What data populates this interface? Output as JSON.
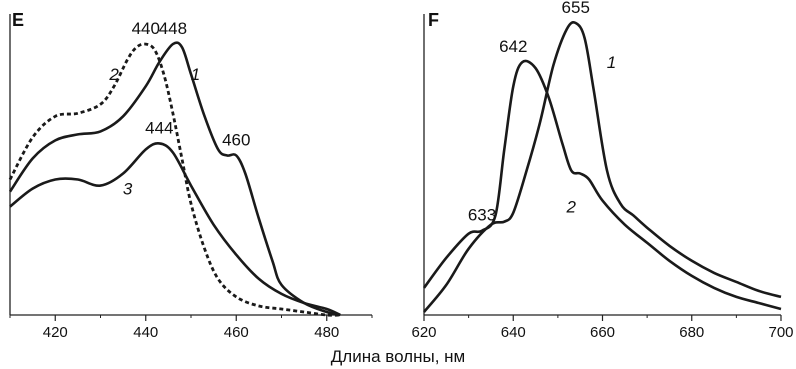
{
  "xlabel": "Длина волны, нм",
  "chart_data": [
    {
      "type": "line",
      "panel": "E",
      "xlim": [
        410,
        490
      ],
      "ylim": [
        0,
        1
      ],
      "xticks": [
        420,
        440,
        460,
        480
      ],
      "grid": false,
      "legend": "none",
      "series": [
        {
          "curve_label": "1",
          "style": "solid",
          "x": [
            410,
            415,
            420,
            425,
            430,
            435,
            440,
            443,
            446,
            448,
            450,
            453,
            456,
            458,
            460,
            462,
            465,
            468,
            470,
            475,
            480,
            483
          ],
          "y": [
            0.41,
            0.52,
            0.58,
            0.6,
            0.61,
            0.66,
            0.76,
            0.84,
            0.9,
            0.89,
            0.8,
            0.66,
            0.55,
            0.53,
            0.53,
            0.47,
            0.32,
            0.18,
            0.1,
            0.04,
            0.01,
            0.0
          ]
        },
        {
          "curve_label": "2",
          "style": "dashed",
          "x": [
            410,
            415,
            420,
            425,
            430,
            433,
            436,
            438,
            440,
            442,
            444,
            446,
            448,
            450,
            453,
            456,
            460,
            465,
            470,
            475,
            480,
            483
          ],
          "y": [
            0.45,
            0.59,
            0.66,
            0.67,
            0.7,
            0.76,
            0.85,
            0.89,
            0.9,
            0.88,
            0.8,
            0.67,
            0.52,
            0.37,
            0.22,
            0.12,
            0.06,
            0.03,
            0.02,
            0.01,
            0.0,
            0.0
          ]
        },
        {
          "curve_label": "3",
          "style": "solid",
          "x": [
            410,
            415,
            420,
            425,
            430,
            435,
            440,
            443,
            446,
            450,
            455,
            460,
            465,
            470,
            475,
            480,
            483
          ],
          "y": [
            0.36,
            0.42,
            0.45,
            0.45,
            0.43,
            0.47,
            0.55,
            0.57,
            0.54,
            0.43,
            0.3,
            0.2,
            0.12,
            0.07,
            0.04,
            0.02,
            0.0
          ]
        }
      ],
      "peak_labels": [
        {
          "text": "440",
          "x": 440,
          "y": 0.9
        },
        {
          "text": "448",
          "x": 446,
          "y": 0.9
        },
        {
          "text": "460",
          "x": 460,
          "y": 0.53
        },
        {
          "text": "444",
          "x": 443,
          "y": 0.57
        }
      ],
      "curve_labels": [
        {
          "text": "1",
          "x": 451,
          "y": 0.78
        },
        {
          "text": "2",
          "x": 433,
          "y": 0.78
        },
        {
          "text": "3",
          "x": 436,
          "y": 0.4
        }
      ]
    },
    {
      "type": "line",
      "panel": "F",
      "xlim": [
        620,
        700
      ],
      "ylim": [
        0,
        1
      ],
      "xticks": [
        620,
        640,
        660,
        680,
        700
      ],
      "grid": false,
      "legend": "none",
      "series": [
        {
          "curve_label": "1",
          "style": "solid",
          "x": [
            620,
            625,
            630,
            635,
            638,
            640,
            643,
            646,
            649,
            652,
            654,
            656,
            658,
            661,
            664,
            667,
            670,
            675,
            680,
            685,
            690,
            695,
            700
          ],
          "y": [
            0.01,
            0.1,
            0.22,
            0.3,
            0.31,
            0.34,
            0.48,
            0.64,
            0.83,
            0.95,
            0.97,
            0.92,
            0.75,
            0.48,
            0.37,
            0.33,
            0.29,
            0.23,
            0.18,
            0.14,
            0.11,
            0.08,
            0.06
          ]
        },
        {
          "curve_label": "2",
          "style": "solid",
          "x": [
            620,
            625,
            630,
            633,
            636,
            638,
            640,
            642,
            645,
            648,
            651,
            653,
            655,
            657,
            660,
            665,
            670,
            675,
            680,
            685,
            690,
            695,
            700
          ],
          "y": [
            0.09,
            0.19,
            0.27,
            0.28,
            0.33,
            0.55,
            0.76,
            0.84,
            0.82,
            0.72,
            0.57,
            0.48,
            0.47,
            0.45,
            0.38,
            0.3,
            0.24,
            0.18,
            0.13,
            0.09,
            0.06,
            0.04,
            0.02
          ]
        }
      ],
      "peak_labels": [
        {
          "text": "642",
          "x": 640,
          "y": 0.84
        },
        {
          "text": "655",
          "x": 654,
          "y": 0.97
        },
        {
          "text": "633",
          "x": 633,
          "y": 0.28
        }
      ],
      "curve_labels": [
        {
          "text": "1",
          "x": 662,
          "y": 0.82
        },
        {
          "text": "2",
          "x": 653,
          "y": 0.34
        }
      ]
    }
  ]
}
